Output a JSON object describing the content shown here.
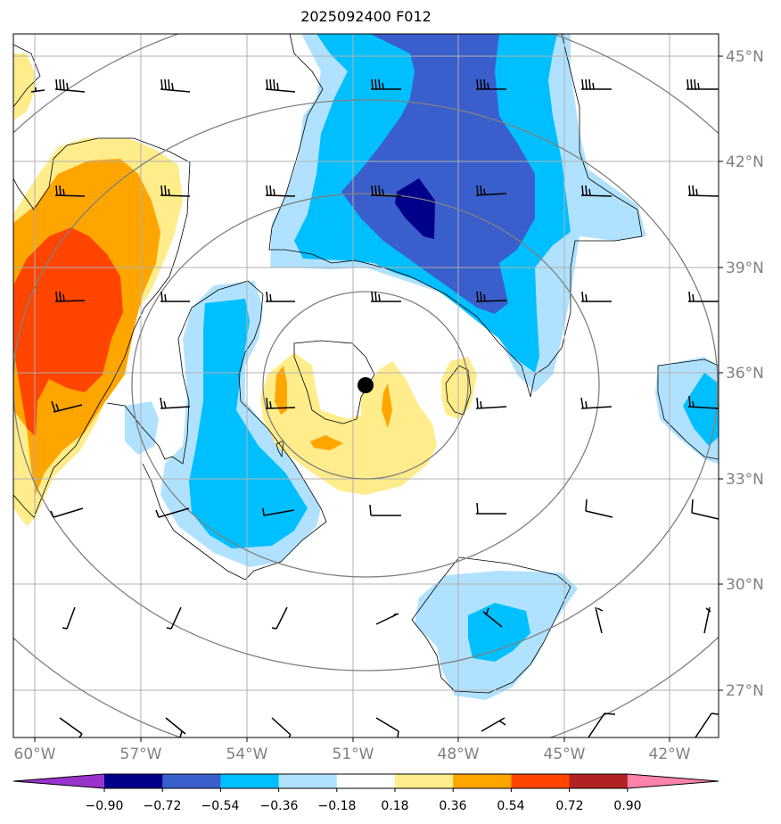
{
  "title": "2025092400 F012",
  "longitude_labels": [
    "60°W",
    "57°W",
    "54°W",
    "51°W",
    "48°W",
    "45°W",
    "42°W"
  ],
  "latitude_labels": [
    "45°N",
    "42°N",
    "39°N",
    "36°N",
    "33°N",
    "30°N",
    "27°N"
  ],
  "colorbar": {
    "ticks": [
      "−0.90",
      "−0.72",
      "−0.54",
      "−0.36",
      "−0.18",
      "0.18",
      "0.36",
      "0.54",
      "0.72",
      "0.90"
    ],
    "colors": [
      "#9a32cd",
      "#00008b",
      "#3a5fcd",
      "#00bfff",
      "#b0e2ff",
      "#ffffff",
      "#ffec8b",
      "#ffa500",
      "#ff4500",
      "#b22222",
      "#ff82ab"
    ]
  },
  "contour_colors": {
    "strong_neg": "#00008b",
    "mod_neg": "#3a5fcd",
    "neg": "#00bfff",
    "weak_neg": "#b0e2ff",
    "weak_pos": "#ffec8b",
    "pos": "#ffa500",
    "strong_pos": "#ff4500",
    "grid": "#b0b0b0",
    "range_rings": "#808080"
  },
  "storm_center_marker": "black-dot"
}
